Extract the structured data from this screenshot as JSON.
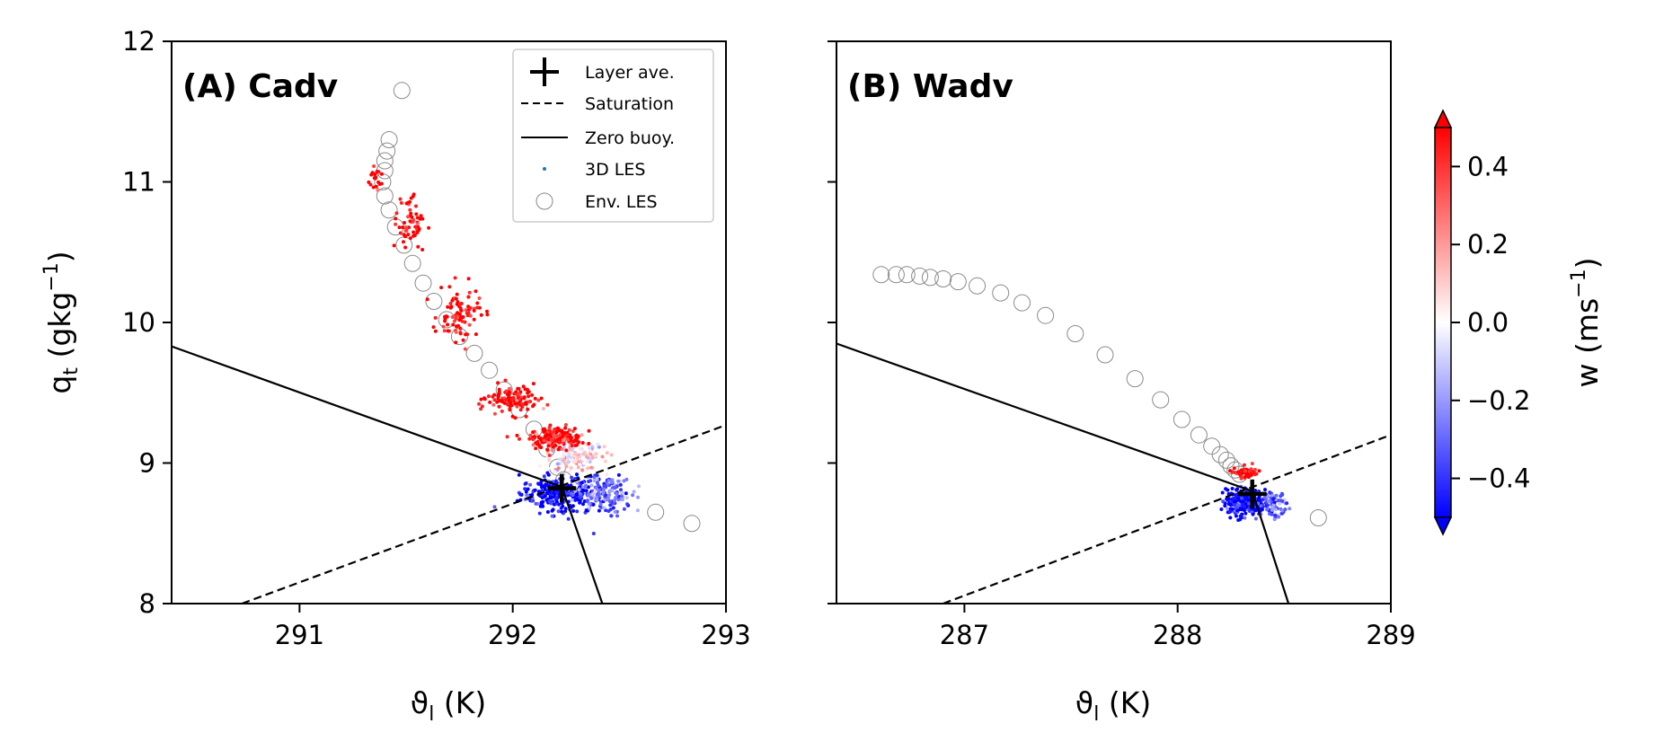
{
  "chart_data": [
    {
      "type": "scatter",
      "panel_label": "(A) Cadv",
      "xlabel": "ϑ",
      "xlabel_sub": "l",
      "xlabel_unit": " (K)",
      "ylabel": "q",
      "ylabel_sub": "t",
      "ylabel_unit_pre": " (gkg",
      "ylabel_unit_sup": "−1",
      "ylabel_unit_post": ")",
      "xlim": [
        290.4,
        293.0
      ],
      "ylim": [
        8,
        12
      ],
      "xticks": [
        291,
        292,
        293
      ],
      "xtick_labels": [
        "291",
        "292",
        "293"
      ],
      "yticks": [
        8,
        9,
        10,
        11,
        12
      ],
      "ytick_labels": [
        "8",
        "9",
        "10",
        "11",
        "12"
      ],
      "layer_average": {
        "x": 292.23,
        "y": 8.82
      },
      "saturation_line": [
        [
          290.73,
          8.0
        ],
        [
          293.0,
          9.27
        ]
      ],
      "zero_buoyancy_line": [
        [
          290.4,
          9.83
        ],
        [
          292.23,
          8.83
        ],
        [
          292.42,
          8.0
        ]
      ],
      "env_les": [
        [
          291.48,
          11.65
        ],
        [
          291.42,
          11.3
        ],
        [
          291.41,
          11.22
        ],
        [
          291.4,
          11.15
        ],
        [
          291.4,
          11.08
        ],
        [
          291.39,
          11.0
        ],
        [
          291.4,
          10.9
        ],
        [
          291.42,
          10.8
        ],
        [
          291.45,
          10.68
        ],
        [
          291.49,
          10.55
        ],
        [
          291.53,
          10.42
        ],
        [
          291.58,
          10.28
        ],
        [
          291.63,
          10.15
        ],
        [
          291.69,
          10.02
        ],
        [
          291.75,
          9.9
        ],
        [
          291.82,
          9.78
        ],
        [
          291.89,
          9.66
        ],
        [
          291.96,
          9.52
        ],
        [
          292.03,
          9.38
        ],
        [
          292.1,
          9.24
        ],
        [
          292.16,
          9.1
        ],
        [
          292.21,
          8.97
        ],
        [
          292.24,
          8.88
        ],
        [
          292.67,
          8.65
        ],
        [
          292.84,
          8.57
        ]
      ],
      "les_cluster_centers": [
        {
          "x": 292.22,
          "y": 8.78,
          "spread_x": 0.18,
          "spread_y": 0.12,
          "w": -0.5,
          "n": 260
        },
        {
          "x": 292.42,
          "y": 8.78,
          "spread_x": 0.14,
          "spread_y": 0.14,
          "w": -0.3,
          "n": 160
        },
        {
          "x": 292.3,
          "y": 9.05,
          "spread_x": 0.14,
          "spread_y": 0.12,
          "w": 0.0,
          "n": 140
        },
        {
          "x": 292.2,
          "y": 9.18,
          "spread_x": 0.12,
          "spread_y": 0.08,
          "w": 0.5,
          "n": 180
        },
        {
          "x": 292.0,
          "y": 9.45,
          "spread_x": 0.12,
          "spread_y": 0.1,
          "w": 0.5,
          "n": 120
        },
        {
          "x": 291.75,
          "y": 10.05,
          "spread_x": 0.1,
          "spread_y": 0.18,
          "w": 0.5,
          "n": 90
        },
        {
          "x": 291.52,
          "y": 10.7,
          "spread_x": 0.06,
          "spread_y": 0.2,
          "w": 0.5,
          "n": 60
        },
        {
          "x": 291.36,
          "y": 11.0,
          "spread_x": 0.04,
          "spread_y": 0.08,
          "w": 0.5,
          "n": 20
        }
      ]
    },
    {
      "type": "scatter",
      "panel_label": "(B) Wadv",
      "xlabel": "ϑ",
      "xlabel_sub": "l",
      "xlabel_unit": " (K)",
      "xlim": [
        286.4,
        289.0
      ],
      "ylim": [
        8,
        12
      ],
      "xticks": [
        287,
        288,
        289
      ],
      "xtick_labels": [
        "287",
        "288",
        "289"
      ],
      "yticks": [
        8,
        9,
        10,
        11,
        12
      ],
      "layer_average": {
        "x": 288.35,
        "y": 8.78
      },
      "saturation_line": [
        [
          286.9,
          8.0
        ],
        [
          289.0,
          9.2
        ]
      ],
      "zero_buoyancy_line": [
        [
          286.4,
          9.85
        ],
        [
          288.35,
          8.8
        ],
        [
          288.52,
          8.0
        ]
      ],
      "env_les": [
        [
          286.61,
          10.34
        ],
        [
          286.68,
          10.34
        ],
        [
          286.73,
          10.34
        ],
        [
          286.79,
          10.33
        ],
        [
          286.84,
          10.32
        ],
        [
          286.9,
          10.31
        ],
        [
          286.97,
          10.29
        ],
        [
          287.06,
          10.26
        ],
        [
          287.17,
          10.21
        ],
        [
          287.27,
          10.14
        ],
        [
          287.38,
          10.05
        ],
        [
          287.52,
          9.92
        ],
        [
          287.66,
          9.77
        ],
        [
          287.8,
          9.6
        ],
        [
          287.92,
          9.45
        ],
        [
          288.02,
          9.31
        ],
        [
          288.1,
          9.2
        ],
        [
          288.16,
          9.12
        ],
        [
          288.2,
          9.06
        ],
        [
          288.23,
          9.02
        ],
        [
          288.25,
          8.98
        ],
        [
          288.27,
          8.95
        ],
        [
          288.29,
          8.92
        ],
        [
          288.66,
          8.61
        ]
      ],
      "les_cluster_centers": [
        {
          "x": 288.32,
          "y": 8.72,
          "spread_x": 0.09,
          "spread_y": 0.09,
          "w": -0.5,
          "n": 320
        },
        {
          "x": 288.45,
          "y": 8.7,
          "spread_x": 0.06,
          "spread_y": 0.08,
          "w": -0.3,
          "n": 80
        },
        {
          "x": 288.32,
          "y": 8.93,
          "spread_x": 0.05,
          "spread_y": 0.04,
          "w": 0.5,
          "n": 60
        }
      ]
    }
  ],
  "legend": {
    "placement": "top-right of panel A",
    "entries": [
      {
        "label": "Layer ave.",
        "marker": "plus"
      },
      {
        "label": "Saturation",
        "marker": "dashed-line"
      },
      {
        "label": "Zero buoy.",
        "marker": "solid-line"
      },
      {
        "label": "3D LES",
        "marker": "small-dot"
      },
      {
        "label": "Env. LES",
        "marker": "open-circle"
      }
    ]
  },
  "colorbar": {
    "label": "w",
    "label_unit_pre": " (ms",
    "label_unit_sup": "−1",
    "label_unit_post": ")",
    "vmin": -0.5,
    "vmax": 0.5,
    "ticks": [
      0.4,
      0.2,
      0.0,
      -0.2,
      -0.4
    ],
    "tick_labels": [
      "0.4",
      "0.2",
      "0.0",
      "−0.2",
      "−0.4"
    ],
    "colormap": "bwr",
    "color_low": "#0000ff",
    "color_mid": "#ffffff",
    "color_high": "#ff0000"
  }
}
